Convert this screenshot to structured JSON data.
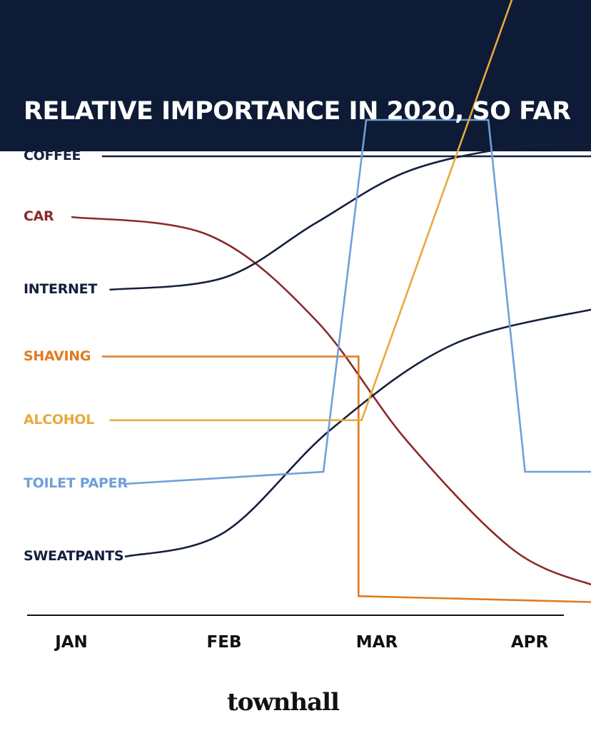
{
  "chart_data": {
    "type": "line",
    "title": "RELATIVE IMPORTANCE IN 2020, SO FAR",
    "categories": [
      "JAN",
      "FEB",
      "MAR",
      "APR"
    ],
    "x_ticks": [
      "JAN",
      "FEB",
      "MAR",
      "APR"
    ],
    "y_axis": "relative importance (unlabeled, higher is more important)",
    "series": [
      {
        "name": "COFFEE",
        "color": "#14203d",
        "points": [
          [
            0.2,
            8.6
          ],
          [
            3.45,
            8.6
          ]
        ]
      },
      {
        "name": "CAR",
        "color": "#8b2a2a",
        "points": [
          [
            0.0,
            7.6
          ],
          [
            0.9,
            7.3
          ],
          [
            1.6,
            5.9
          ],
          [
            2.2,
            3.9
          ],
          [
            2.9,
            2.1
          ],
          [
            3.45,
            1.5
          ]
        ]
      },
      {
        "name": "INTERNET",
        "color": "#14203d",
        "points": [
          [
            0.25,
            6.4
          ],
          [
            1.0,
            6.6
          ],
          [
            1.6,
            7.5
          ],
          [
            2.2,
            8.35
          ],
          [
            2.9,
            8.75
          ],
          [
            3.45,
            8.8
          ]
        ]
      },
      {
        "name": "SHAVING",
        "color": "#e07b22",
        "points": [
          [
            0.2,
            5.3
          ],
          [
            1.88,
            5.3
          ],
          [
            1.88,
            1.35
          ],
          [
            3.45,
            1.25
          ]
        ]
      },
      {
        "name": "ALCOHOL",
        "color": "#e8a93d",
        "points": [
          [
            0.25,
            4.25
          ],
          [
            1.9,
            4.25
          ],
          [
            3.0,
            12.0
          ]
        ]
      },
      {
        "name": "TOILET PAPER",
        "color": "#6fa0d8",
        "points": [
          [
            0.35,
            3.2
          ],
          [
            1.65,
            3.4
          ],
          [
            1.93,
            9.2
          ],
          [
            2.73,
            9.2
          ],
          [
            2.97,
            3.4
          ],
          [
            3.45,
            3.4
          ]
        ]
      },
      {
        "name": "SWEATPANTS",
        "color": "#14203d",
        "points": [
          [
            0.35,
            2.0
          ],
          [
            1.0,
            2.4
          ],
          [
            1.7,
            4.1
          ],
          [
            2.5,
            5.5
          ],
          [
            3.45,
            6.1
          ]
        ]
      }
    ]
  },
  "footer": {
    "logo": "townhall"
  }
}
